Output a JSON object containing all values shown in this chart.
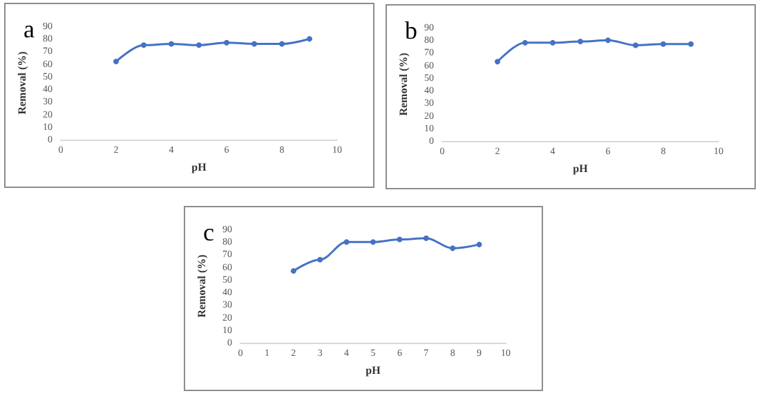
{
  "chart_data": [
    {
      "type": "line",
      "title": "a",
      "xlabel": "pH",
      "ylabel": "Removal (%)",
      "x": [
        2,
        3,
        4,
        5,
        6,
        7,
        8,
        9
      ],
      "series": [
        {
          "color": "#4472c4",
          "values": [
            62,
            75,
            76,
            75,
            77,
            76,
            76,
            80
          ]
        }
      ],
      "xlim": [
        0,
        10
      ],
      "xticks": [
        0,
        2,
        4,
        6,
        8,
        10
      ],
      "ylim": [
        0,
        90
      ],
      "yticks": [
        0,
        10,
        20,
        30,
        40,
        50,
        60,
        70,
        80,
        90
      ],
      "grid": false,
      "marker": "circle",
      "line_style": "solid"
    },
    {
      "type": "line",
      "title": "b",
      "xlabel": "pH",
      "ylabel": "Removal (%)",
      "x": [
        2,
        3,
        4,
        5,
        6,
        7,
        8,
        9
      ],
      "series": [
        {
          "color": "#4472c4",
          "values": [
            63,
            78,
            78,
            79,
            80,
            76,
            77,
            77
          ]
        }
      ],
      "xlim": [
        0,
        10
      ],
      "xticks": [
        0,
        2,
        4,
        6,
        8,
        10
      ],
      "ylim": [
        0,
        90
      ],
      "yticks": [
        0,
        10,
        20,
        30,
        40,
        50,
        60,
        70,
        80,
        90
      ],
      "grid": false,
      "marker": "circle",
      "line_style": "solid"
    },
    {
      "type": "line",
      "title": "c",
      "xlabel": "pH",
      "ylabel": "Removal (%)",
      "x": [
        2,
        3,
        4,
        5,
        6,
        7,
        8,
        9
      ],
      "series": [
        {
          "color": "#4472c4",
          "values": [
            57,
            66,
            80,
            80,
            82,
            83,
            75,
            78
          ]
        }
      ],
      "xlim": [
        0,
        10
      ],
      "xticks": [
        0,
        1,
        2,
        3,
        4,
        5,
        6,
        7,
        8,
        9,
        10
      ],
      "ylim": [
        0,
        90
      ],
      "yticks": [
        0,
        10,
        20,
        30,
        40,
        50,
        60,
        70,
        80,
        90
      ],
      "grid": false,
      "marker": "circle",
      "line_style": "solid"
    }
  ]
}
